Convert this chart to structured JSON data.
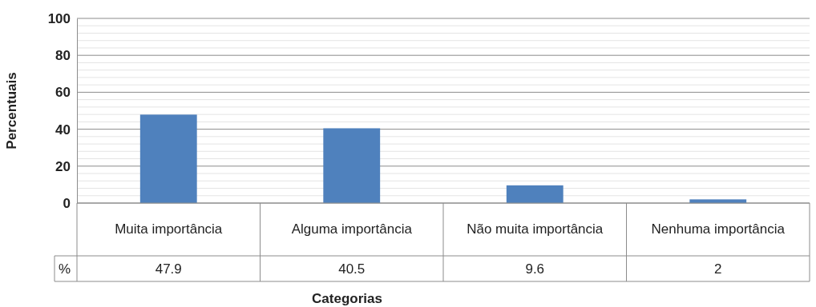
{
  "chart_data": {
    "type": "bar",
    "xlabel": "Categorias",
    "ylabel": "Percentuais",
    "categories": [
      "Muita importância",
      "Alguma importância",
      "Não muita importância",
      "Nenhuma importância"
    ],
    "series": [
      {
        "name": "%",
        "color": "#4f81bd",
        "values": [
          47.9,
          40.5,
          9.6,
          2
        ]
      }
    ],
    "ylim": [
      0,
      100
    ],
    "yticks": [
      0,
      {
        "value": 4,
        "label": null
      },
      {
        "value": 8,
        "label": null
      },
      {
        "value": 12,
        "label": null
      },
      {
        "value": 16,
        "label": null
      },
      20,
      {
        "value": 24,
        "label": null
      },
      {
        "value": 28,
        "label": null
      },
      {
        "value": 32,
        "label": null
      },
      {
        "value": 36,
        "label": null
      },
      40,
      {
        "value": 44,
        "label": null
      },
      {
        "value": 48,
        "label": null
      },
      {
        "value": 52,
        "label": null
      },
      {
        "value": 56,
        "label": null
      },
      60,
      {
        "value": 64,
        "label": null
      },
      {
        "value": 68,
        "label": null
      },
      {
        "value": 72,
        "label": null
      },
      {
        "value": 76,
        "label": null
      },
      80,
      {
        "value": 84,
        "label": null
      },
      {
        "value": 88,
        "label": null
      },
      {
        "value": 92,
        "label": null
      },
      {
        "value": 96,
        "label": null
      },
      100
    ],
    "grid": true,
    "data_labels": true
  }
}
